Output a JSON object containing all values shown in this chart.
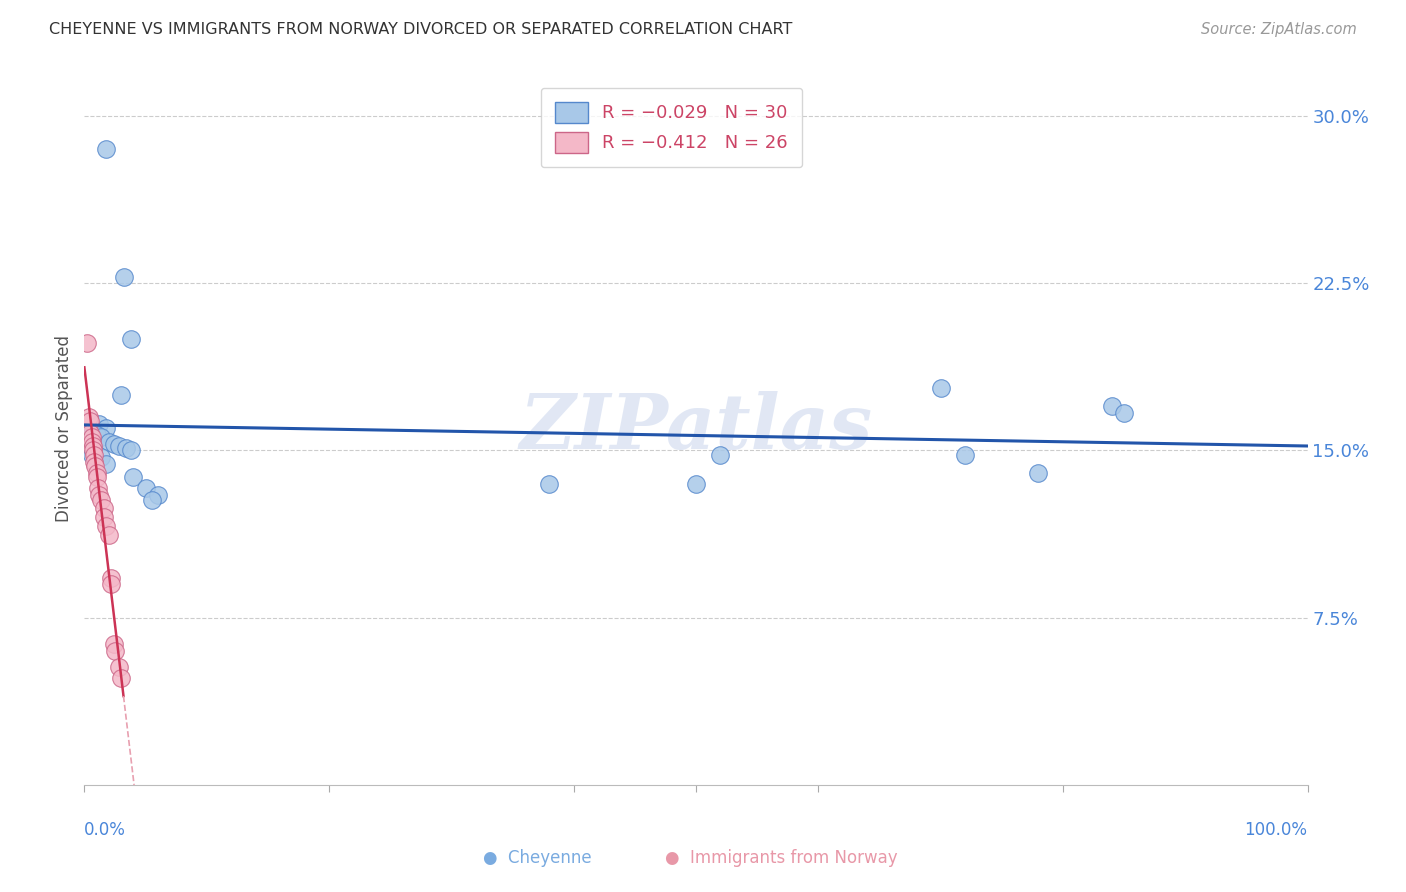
{
  "title": "CHEYENNE VS IMMIGRANTS FROM NORWAY DIVORCED OR SEPARATED CORRELATION CHART",
  "source": "Source: ZipAtlas.com",
  "ylabel": "Divorced or Separated",
  "ytick_labels": [
    "7.5%",
    "15.0%",
    "22.5%",
    "30.0%"
  ],
  "ytick_values": [
    0.075,
    0.15,
    0.225,
    0.3
  ],
  "cheyenne_color": "#a8c8e8",
  "cheyenne_edge_color": "#5588cc",
  "norway_color": "#f4b8c8",
  "norway_edge_color": "#cc6688",
  "cheyenne_line_color": "#2255aa",
  "norway_line_solid_color": "#cc3355",
  "norway_line_dash_color": "#e8a0b0",
  "cheyenne_scatter": [
    [
      0.018,
      0.285
    ],
    [
      0.032,
      0.228
    ],
    [
      0.038,
      0.2
    ],
    [
      0.03,
      0.175
    ],
    [
      0.012,
      0.162
    ],
    [
      0.018,
      0.16
    ],
    [
      0.006,
      0.158
    ],
    [
      0.008,
      0.158
    ],
    [
      0.01,
      0.157
    ],
    [
      0.014,
      0.156
    ],
    [
      0.02,
      0.154
    ],
    [
      0.024,
      0.153
    ],
    [
      0.028,
      0.152
    ],
    [
      0.034,
      0.151
    ],
    [
      0.038,
      0.15
    ],
    [
      0.006,
      0.148
    ],
    [
      0.014,
      0.147
    ],
    [
      0.018,
      0.144
    ],
    [
      0.04,
      0.138
    ],
    [
      0.05,
      0.133
    ],
    [
      0.06,
      0.13
    ],
    [
      0.055,
      0.128
    ],
    [
      0.38,
      0.135
    ],
    [
      0.5,
      0.135
    ],
    [
      0.52,
      0.148
    ],
    [
      0.7,
      0.178
    ],
    [
      0.72,
      0.148
    ],
    [
      0.78,
      0.14
    ],
    [
      0.84,
      0.17
    ],
    [
      0.85,
      0.167
    ]
  ],
  "norway_scatter": [
    [
      0.002,
      0.198
    ],
    [
      0.004,
      0.165
    ],
    [
      0.005,
      0.163
    ],
    [
      0.005,
      0.158
    ],
    [
      0.006,
      0.156
    ],
    [
      0.006,
      0.154
    ],
    [
      0.007,
      0.152
    ],
    [
      0.007,
      0.15
    ],
    [
      0.008,
      0.148
    ],
    [
      0.008,
      0.145
    ],
    [
      0.009,
      0.143
    ],
    [
      0.01,
      0.14
    ],
    [
      0.01,
      0.138
    ],
    [
      0.011,
      0.133
    ],
    [
      0.012,
      0.13
    ],
    [
      0.014,
      0.128
    ],
    [
      0.016,
      0.124
    ],
    [
      0.016,
      0.12
    ],
    [
      0.018,
      0.116
    ],
    [
      0.02,
      0.112
    ],
    [
      0.022,
      0.093
    ],
    [
      0.022,
      0.09
    ],
    [
      0.024,
      0.063
    ],
    [
      0.025,
      0.06
    ],
    [
      0.028,
      0.053
    ],
    [
      0.03,
      0.048
    ]
  ],
  "xlim": [
    0.0,
    1.0
  ],
  "ylim": [
    0.0,
    0.32
  ],
  "bg_color": "#ffffff",
  "grid_color": "#cccccc"
}
